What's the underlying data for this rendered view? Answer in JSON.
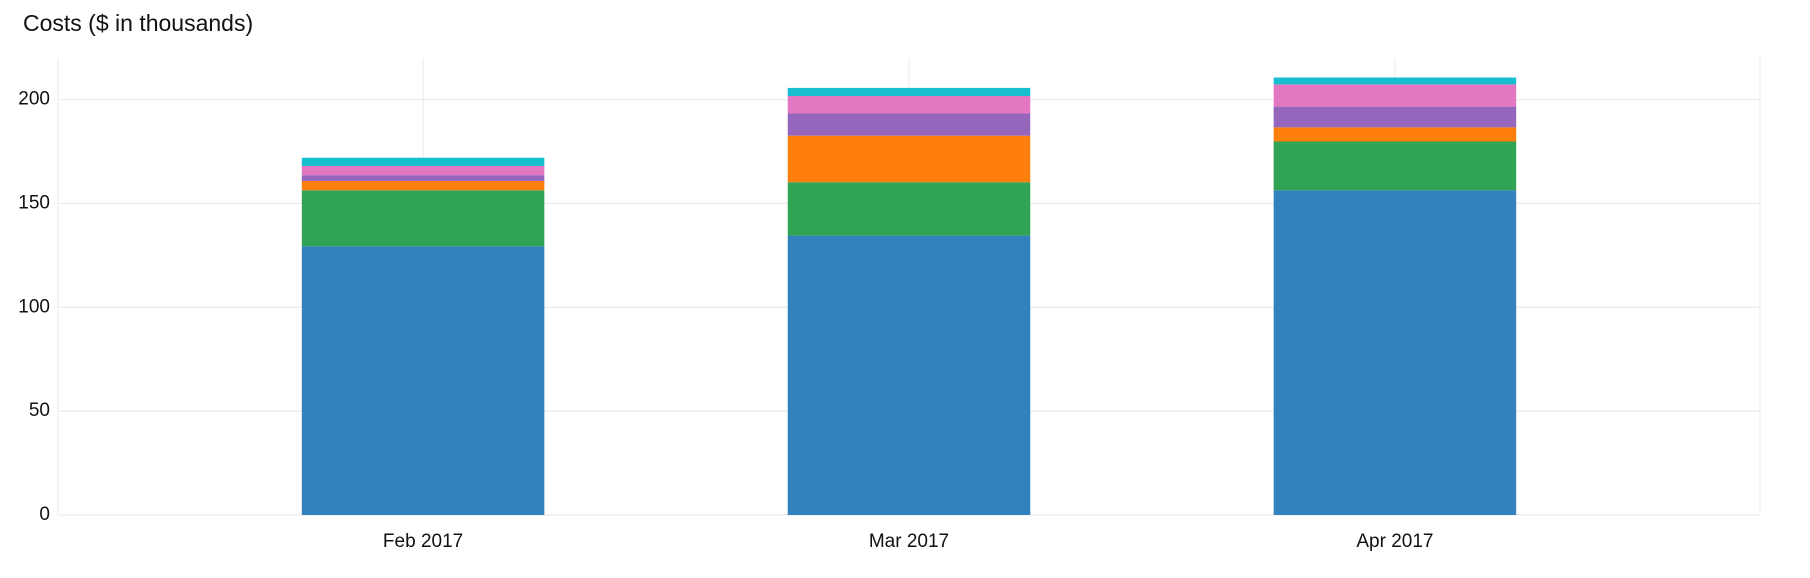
{
  "chart_data": {
    "type": "stacked_bar",
    "title": "Costs ($ in thousands)",
    "categories": [
      "Feb 2017",
      "Mar 2017",
      "Apr 2017"
    ],
    "series": [
      {
        "color": "#3182bd",
        "values": [
          129.4,
          134.5,
          156.3
        ]
      },
      {
        "color": "#31a354",
        "values": [
          26.9,
          25.7,
          23.5
        ]
      },
      {
        "color": "#ff7f0e",
        "values": [
          4.5,
          22.4,
          6.8
        ]
      },
      {
        "color": "#9467bd",
        "values": [
          2.8,
          10.7,
          10
        ]
      },
      {
        "color": "#e377c2",
        "values": [
          4.4,
          8.4,
          10.7
        ]
      },
      {
        "color": "#17becf",
        "values": [
          4,
          3.9,
          3.3
        ]
      }
    ],
    "ylim": [
      0,
      220
    ],
    "yticks": [
      0,
      50,
      100,
      150,
      200
    ],
    "grid": true
  }
}
